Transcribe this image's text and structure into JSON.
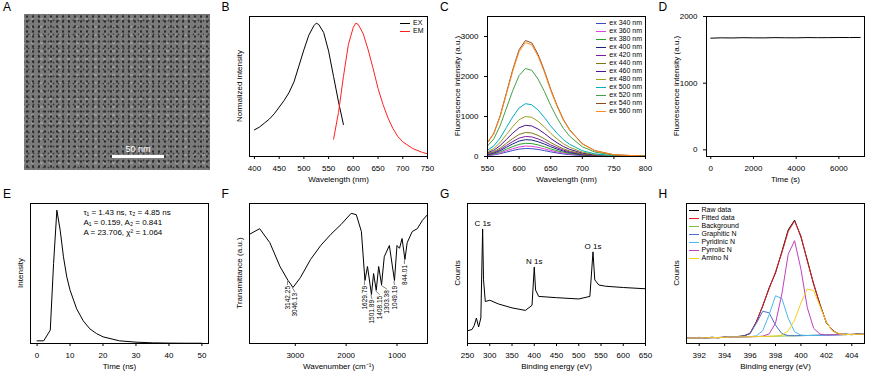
{
  "chart_data": [
    {
      "type": "image",
      "title": "A",
      "annotations": [
        "50 nm"
      ]
    },
    {
      "type": "line",
      "title": "B",
      "x_label": "Wavelength (nm)",
      "y_label": "Normalized intensity",
      "xlim": [
        390,
        750
      ],
      "xticks": [
        400,
        450,
        500,
        550,
        600,
        650,
        700,
        750
      ],
      "ylim": [
        0,
        1.05
      ],
      "tick_labels": "x",
      "legend": "upper right",
      "series": [
        {
          "name": "EX",
          "color": "#000000",
          "x": [
            400,
            410,
            420,
            430,
            440,
            450,
            460,
            470,
            480,
            490,
            500,
            510,
            520,
            525,
            530,
            540,
            550,
            560,
            570,
            580
          ],
          "values": [
            0.2,
            0.22,
            0.25,
            0.28,
            0.32,
            0.37,
            0.42,
            0.48,
            0.56,
            0.68,
            0.8,
            0.91,
            0.98,
            1.0,
            0.99,
            0.93,
            0.79,
            0.6,
            0.41,
            0.24
          ]
        },
        {
          "name": "EM",
          "color": "#ff2020",
          "x": [
            560,
            570,
            580,
            590,
            600,
            605,
            610,
            620,
            630,
            640,
            650,
            660,
            670,
            680,
            690,
            700,
            720,
            740,
            750
          ],
          "values": [
            0.13,
            0.33,
            0.6,
            0.84,
            0.97,
            1.0,
            0.99,
            0.92,
            0.8,
            0.66,
            0.51,
            0.39,
            0.29,
            0.21,
            0.15,
            0.11,
            0.06,
            0.03,
            0.02
          ]
        }
      ]
    },
    {
      "type": "line",
      "title": "C",
      "x_label": "Wavelength (nm)",
      "y_label": "Fluorescence intensity (a.u.)",
      "xlim": [
        550,
        800
      ],
      "xticks": [
        550,
        600,
        650,
        700,
        750,
        800
      ],
      "ylim": [
        0,
        3500
      ],
      "yticks": [
        0,
        1000,
        2000,
        3000
      ],
      "legend": "upper right",
      "x": [
        550,
        560,
        570,
        580,
        590,
        600,
        610,
        620,
        630,
        640,
        650,
        660,
        670,
        680,
        700,
        720,
        750,
        800
      ],
      "series": [
        {
          "name": "ex 340 nm",
          "color": "#3b4cc0",
          "values": [
            24,
            40,
            70,
            110,
            150,
            184,
            200,
            196,
            176,
            148,
            116,
            88,
            64,
            46,
            22,
            10,
            3,
            1
          ]
        },
        {
          "name": "ex 360 nm",
          "color": "#e040e0",
          "values": [
            31,
            52,
            91,
            143,
            195,
            239,
            260,
            255,
            229,
            192,
            151,
            114,
            83,
            60,
            29,
            13,
            4,
            1
          ]
        },
        {
          "name": "ex 380 nm",
          "color": "#2ca02c",
          "values": [
            40,
            66,
            116,
            182,
            248,
            304,
            330,
            323,
            290,
            244,
            191,
            145,
            106,
            76,
            36,
            17,
            5,
            1
          ]
        },
        {
          "name": "ex 400 nm",
          "color": "#1a237e",
          "values": [
            50,
            84,
            147,
            231,
            315,
            386,
            420,
            412,
            370,
            311,
            244,
            185,
            134,
            97,
            46,
            21,
            6,
            1
          ]
        },
        {
          "name": "ex 420 nm",
          "color": "#7b1fa2",
          "values": [
            60,
            100,
            175,
            275,
            375,
            460,
            500,
            490,
            440,
            370,
            290,
            220,
            160,
            115,
            55,
            25,
            8,
            2
          ]
        },
        {
          "name": "ex 440 nm",
          "color": "#827717",
          "values": [
            72,
            120,
            210,
            330,
            450,
            552,
            600,
            588,
            528,
            444,
            348,
            264,
            192,
            138,
            66,
            30,
            9,
            2
          ]
        },
        {
          "name": "ex 460 nm",
          "color": "#4a148c",
          "values": [
            94,
            156,
            273,
            429,
            585,
            718,
            780,
            764,
            686,
            577,
            452,
            343,
            250,
            179,
            86,
            39,
            12,
            2
          ]
        },
        {
          "name": "ex 480 nm",
          "color": "#9e9d24",
          "values": [
            120,
            200,
            350,
            550,
            750,
            920,
            1000,
            980,
            880,
            740,
            580,
            440,
            320,
            230,
            110,
            50,
            15,
            3
          ]
        },
        {
          "name": "ex 500 nm",
          "color": "#00acc1",
          "values": [
            158,
            264,
            462,
            726,
            990,
            1214,
            1320,
            1294,
            1162,
            977,
            766,
            581,
            422,
            304,
            145,
            66,
            20,
            4
          ]
        },
        {
          "name": "ex 520 nm",
          "color": "#43a047",
          "values": [
            264,
            440,
            770,
            1210,
            1650,
            2024,
            2200,
            2156,
            1936,
            1628,
            1276,
            968,
            704,
            506,
            242,
            110,
            33,
            7
          ]
        },
        {
          "name": "ex 540 nm",
          "color": "#8d4a1f",
          "values": [
            348,
            580,
            1015,
            1595,
            2175,
            2668,
            2900,
            2842,
            2552,
            2146,
            1682,
            1276,
            928,
            667,
            319,
            145,
            44,
            9
          ]
        },
        {
          "name": "ex 560 nm",
          "color": "#ff8a1f",
          "values": [
            342,
            570,
            998,
            1568,
            2138,
            2622,
            2850,
            2793,
            2508,
            2109,
            1653,
            1254,
            912,
            656,
            314,
            143,
            43,
            9
          ]
        }
      ]
    },
    {
      "type": "line",
      "title": "D",
      "x_label": "Time (s)",
      "y_label": "Fluorescence intensity (a.u.)",
      "xlim": [
        -200,
        7200
      ],
      "xticks": [
        0,
        2000,
        4000,
        6000
      ],
      "ylim": [
        -100,
        2000
      ],
      "yticks": [
        0,
        1000,
        2000
      ],
      "x": [
        0,
        500,
        1000,
        1500,
        2000,
        2500,
        3000,
        3500,
        4000,
        4500,
        5000,
        5500,
        6000,
        6500,
        7000
      ],
      "series": [
        {
          "color": "#000000",
          "values": [
            1675,
            1680,
            1678,
            1682,
            1680,
            1679,
            1683,
            1681,
            1680,
            1684,
            1682,
            1683,
            1685,
            1684,
            1686
          ]
        }
      ]
    },
    {
      "type": "line",
      "title": "E",
      "x_label": "Time (ns)",
      "y_label": "Intensity",
      "xlim": [
        -2,
        52
      ],
      "xticks": [
        0,
        10,
        20,
        30,
        40,
        50
      ],
      "ylim": [
        0,
        1.05
      ],
      "tick_labels": "x",
      "annotations": [
        "τ₁ = 1.43 ns, τ₂ = 4.85 ns",
        "A₁ = 0.159, A₂ = 0.841",
        "A = 23.706, χ² = 1.064"
      ],
      "x": [
        0,
        2,
        4,
        5,
        6,
        7,
        8,
        9,
        10,
        12,
        14,
        16,
        18,
        20,
        25,
        30,
        35,
        40,
        45,
        50
      ],
      "series": [
        {
          "color": "#000000",
          "values": [
            0.02,
            0.02,
            0.1,
            0.6,
            1.0,
            0.85,
            0.65,
            0.5,
            0.4,
            0.26,
            0.17,
            0.11,
            0.075,
            0.05,
            0.02,
            0.01,
            0.005,
            0.003,
            0.002,
            0.002
          ]
        }
      ]
    },
    {
      "type": "line",
      "title": "F",
      "x_label": "Wavenumber (cm⁻¹)",
      "y_label": "Transmittance (a.u.)",
      "xlim": [
        3900,
        400
      ],
      "xticks": [
        3000,
        2000,
        1000
      ],
      "ylim": [
        0,
        1
      ],
      "tick_labels": "x",
      "peak_labels": [
        3142.25,
        3046.13,
        1629.79,
        1501.89,
        1408.15,
        1303.38,
        1049.19,
        844.01
      ],
      "x": [
        3900,
        3700,
        3500,
        3300,
        3142.25,
        3100,
        3046.13,
        2900,
        2700,
        2500,
        2300,
        2100,
        1900,
        1800,
        1700,
        1629.79,
        1580,
        1501.89,
        1460,
        1408.15,
        1360,
        1303.38,
        1250,
        1150,
        1049.19,
        1000,
        950,
        900,
        844.01,
        800,
        700,
        600,
        500,
        400
      ],
      "series": [
        {
          "color": "#000000",
          "values": [
            0.78,
            0.82,
            0.72,
            0.55,
            0.45,
            0.43,
            0.4,
            0.47,
            0.6,
            0.7,
            0.78,
            0.85,
            0.93,
            0.92,
            0.8,
            0.45,
            0.55,
            0.35,
            0.5,
            0.38,
            0.55,
            0.42,
            0.62,
            0.7,
            0.45,
            0.7,
            0.68,
            0.75,
            0.6,
            0.72,
            0.8,
            0.82,
            0.88,
            0.92
          ]
        }
      ]
    },
    {
      "type": "line",
      "title": "G",
      "x_label": "Binding energy (eV)",
      "y_label": "Counts",
      "xlim": [
        250,
        650
      ],
      "xticks": [
        250,
        300,
        350,
        400,
        450,
        500,
        550,
        600,
        650
      ],
      "ylim": [
        0,
        1.1
      ],
      "tick_labels": "x",
      "annotations": [
        {
          "x": 284,
          "text": "C 1s"
        },
        {
          "x": 400,
          "text": "N 1s"
        },
        {
          "x": 532,
          "text": "O 1s"
        }
      ],
      "x": [
        250,
        260,
        265,
        270,
        275,
        280,
        284,
        286,
        290,
        300,
        320,
        350,
        380,
        395,
        400,
        403,
        410,
        450,
        500,
        525,
        532,
        536,
        545,
        560,
        600,
        650
      ],
      "series": [
        {
          "color": "#000000",
          "values": [
            0.1,
            0.11,
            0.14,
            0.2,
            0.13,
            0.2,
            0.9,
            0.5,
            0.33,
            0.34,
            0.31,
            0.28,
            0.26,
            0.3,
            0.6,
            0.42,
            0.37,
            0.36,
            0.35,
            0.37,
            0.72,
            0.5,
            0.46,
            0.45,
            0.44,
            0.43
          ]
        }
      ]
    },
    {
      "type": "line",
      "title": "H",
      "x_label": "Binding energy (eV)",
      "y_label": "Counts",
      "xlim": [
        391,
        405
      ],
      "xticks": [
        392,
        394,
        396,
        398,
        400,
        402,
        404
      ],
      "ylim": [
        0,
        1.05
      ],
      "tick_labels": "x",
      "legend": "upper left",
      "x": [
        391,
        391.5,
        392,
        392.5,
        393,
        393.5,
        394,
        394.5,
        395,
        395.5,
        396,
        396.5,
        397,
        397.5,
        398,
        398.5,
        399,
        399.5,
        400,
        400.5,
        401,
        401.5,
        402,
        402.5,
        403,
        403.5,
        404,
        404.5,
        405
      ],
      "series": [
        {
          "name": "Raw data",
          "color": "#000000",
          "values": [
            0.045,
            0.038,
            0.046,
            0.041,
            0.047,
            0.042,
            0.049,
            0.044,
            0.052,
            0.058,
            0.074,
            0.165,
            0.281,
            0.418,
            0.529,
            0.689,
            0.852,
            0.925,
            0.799,
            0.626,
            0.444,
            0.294,
            0.155,
            0.099,
            0.068,
            0.071,
            0.066,
            0.074,
            0.069
          ]
        },
        {
          "name": "Fitted data",
          "color": "#e8202a",
          "values": [
            0.04,
            0.041,
            0.042,
            0.043,
            0.044,
            0.045,
            0.046,
            0.048,
            0.049,
            0.054,
            0.078,
            0.159,
            0.287,
            0.41,
            0.537,
            0.68,
            0.841,
            0.918,
            0.807,
            0.618,
            0.45,
            0.288,
            0.16,
            0.094,
            0.072,
            0.067,
            0.068,
            0.069,
            0.07
          ]
        },
        {
          "name": "Background",
          "color": "#7cc242",
          "values": [
            0.04,
            0.041,
            0.042,
            0.043,
            0.044,
            0.045,
            0.046,
            0.048,
            0.049,
            0.05,
            0.051,
            0.052,
            0.053,
            0.054,
            0.055,
            0.056,
            0.057,
            0.058,
            0.059,
            0.06,
            0.061,
            0.062,
            0.064,
            0.065,
            0.066,
            0.067,
            0.068,
            0.069,
            0.07
          ]
        },
        {
          "name": "Graphitic N",
          "color": "#4a6fd0",
          "values": [
            0.04,
            0.041,
            0.042,
            0.043,
            0.044,
            0.045,
            0.046,
            0.048,
            0.049,
            0.054,
            0.078,
            0.153,
            0.242,
            0.23,
            0.137,
            0.075,
            0.059,
            0.058,
            0.059,
            0.06,
            0.061,
            0.062,
            0.064,
            0.065,
            0.066,
            0.067,
            0.068,
            0.069,
            0.07
          ]
        },
        {
          "name": "Pyridinic N",
          "color": "#4ab8e8",
          "values": [
            0.04,
            0.041,
            0.042,
            0.043,
            0.044,
            0.045,
            0.046,
            0.048,
            0.049,
            0.05,
            0.051,
            0.058,
            0.096,
            0.216,
            0.358,
            0.338,
            0.189,
            0.088,
            0.063,
            0.06,
            0.061,
            0.062,
            0.064,
            0.065,
            0.066,
            0.067,
            0.068,
            0.069,
            0.07
          ]
        },
        {
          "name": "Pyrrolic N",
          "color": "#c040c0",
          "values": [
            0.04,
            0.041,
            0.042,
            0.043,
            0.044,
            0.045,
            0.046,
            0.048,
            0.049,
            0.05,
            0.051,
            0.052,
            0.055,
            0.072,
            0.152,
            0.371,
            0.669,
            0.771,
            0.558,
            0.269,
            0.114,
            0.07,
            0.064,
            0.065,
            0.066,
            0.067,
            0.068,
            0.069,
            0.07
          ]
        },
        {
          "name": "Amino N",
          "color": "#f0d020",
          "values": [
            0.04,
            0.041,
            0.042,
            0.043,
            0.044,
            0.045,
            0.046,
            0.048,
            0.049,
            0.05,
            0.051,
            0.052,
            0.053,
            0.054,
            0.055,
            0.064,
            0.095,
            0.175,
            0.304,
            0.409,
            0.397,
            0.28,
            0.16,
            0.094,
            0.072,
            0.067,
            0.068,
            0.069,
            0.07
          ]
        }
      ]
    }
  ]
}
